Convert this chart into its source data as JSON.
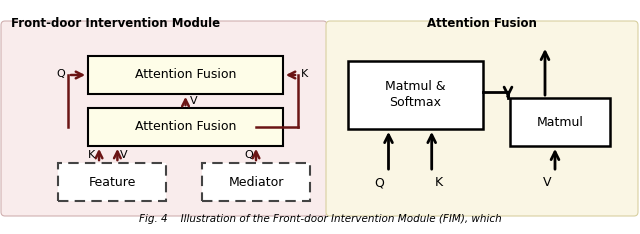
{
  "fig_width": 6.4,
  "fig_height": 2.34,
  "dpi": 100,
  "bg_color": "#ffffff",
  "left_panel_bg": "#f9ecec",
  "right_panel_bg": "#faf6e4",
  "left_panel_title": "Front-door Intervention Module",
  "right_panel_title": "Attention Fusion",
  "caption": "Fig. 4    Illustration of the Front-door Intervention Module (FIM), which",
  "arrow_color": "#6b1515",
  "box_color": "#000000"
}
